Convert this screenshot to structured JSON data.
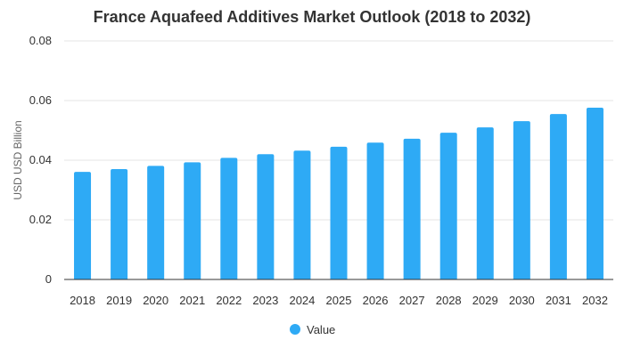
{
  "colors": {
    "bar": "#2eaaf5",
    "grid": "#e6e6e6",
    "axis": "#333333",
    "text": "#333333",
    "title": "#333333",
    "ylabel": "#666666"
  },
  "chart_data": {
    "type": "bar",
    "title": "France Aquafeed Additives Market Outlook (2018 to 2032)",
    "xlabel": "",
    "ylabel": "USD USD Billion",
    "categories": [
      "2018",
      "2019",
      "2020",
      "2021",
      "2022",
      "2023",
      "2024",
      "2025",
      "2026",
      "2027",
      "2028",
      "2029",
      "2030",
      "2031",
      "2032"
    ],
    "series": [
      {
        "name": "Value",
        "values": [
          0.0361,
          0.037,
          0.0381,
          0.0393,
          0.0408,
          0.042,
          0.0432,
          0.0445,
          0.0459,
          0.0472,
          0.0492,
          0.051,
          0.0531,
          0.0555,
          0.0576
        ]
      }
    ],
    "ylim": [
      0,
      0.08
    ],
    "yticks": [
      "0",
      "0.02",
      "0.04",
      "0.06",
      "0.08"
    ],
    "grid": true,
    "legend_position": "bottom-center"
  }
}
